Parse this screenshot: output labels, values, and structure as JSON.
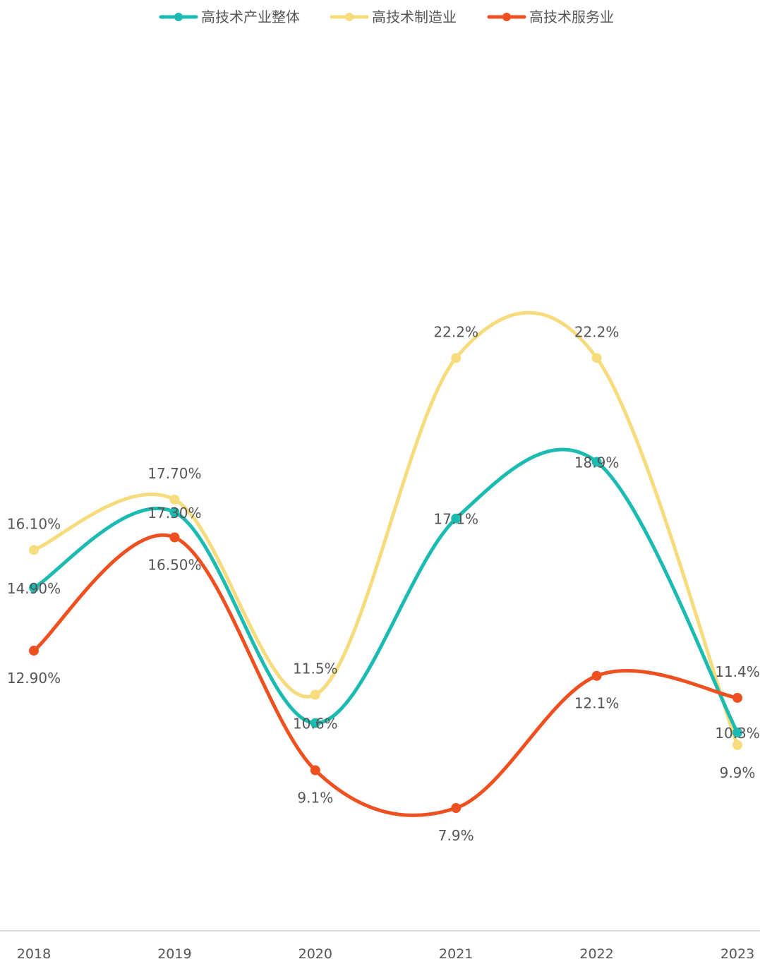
{
  "chart_data": {
    "type": "line",
    "title": "",
    "xlabel": "",
    "ylabel": "",
    "categories": [
      "2018",
      "2019",
      "2020",
      "2021",
      "2022",
      "2023"
    ],
    "ylim": [
      4,
      25
    ],
    "grid": false,
    "legend_position": "top-center",
    "series": [
      {
        "name": "高技术产业整体",
        "color": "#1BBBB2",
        "values": [
          14.9,
          17.3,
          10.6,
          17.1,
          18.9,
          10.3
        ],
        "labels": [
          "14.90%",
          "17.30%",
          "10.6%",
          "17.1%",
          "18.9%",
          "10.3%"
        ]
      },
      {
        "name": "高技术制造业",
        "color": "#F6DC7D",
        "values": [
          16.1,
          17.7,
          11.5,
          22.2,
          22.2,
          9.9
        ],
        "labels": [
          "16.10%",
          "17.70%",
          "11.5%",
          "22.2%",
          "22.2%",
          "9.9%"
        ]
      },
      {
        "name": "高技术服务业",
        "color": "#EE5020",
        "values": [
          12.9,
          16.5,
          9.1,
          7.9,
          12.1,
          11.4
        ],
        "labels": [
          "12.90%",
          "16.50%",
          "9.1%",
          "7.9%",
          "12.1%",
          "11.4%"
        ]
      }
    ]
  }
}
